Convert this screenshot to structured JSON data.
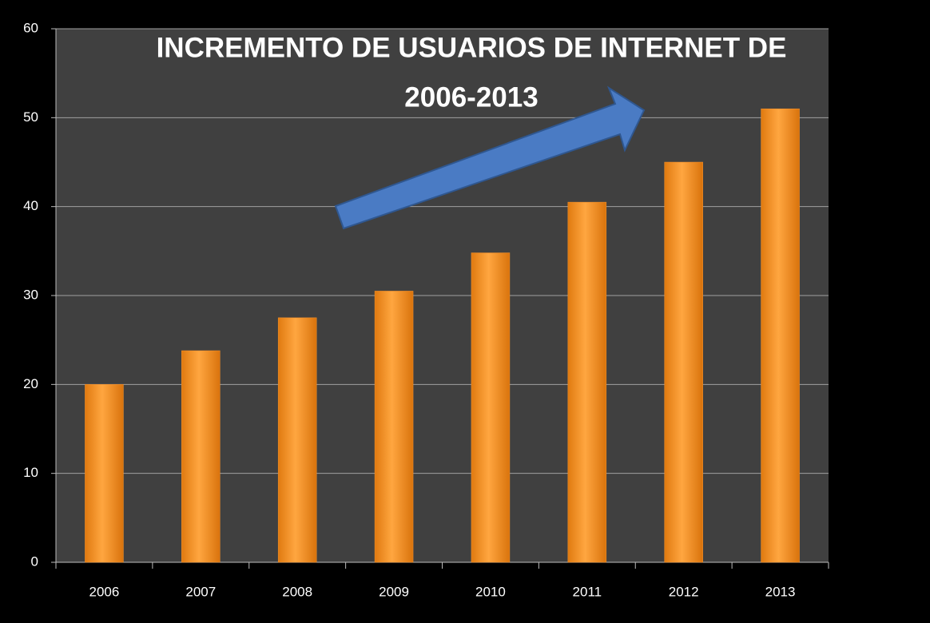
{
  "chart_data": {
    "type": "bar",
    "title": [
      "INCREMENTO DE USUARIOS DE INTERNET DE",
      "2006-2013"
    ],
    "categories": [
      "2006",
      "2007",
      "2008",
      "2009",
      "2010",
      "2011",
      "2012",
      "2013"
    ],
    "values": [
      20,
      23.8,
      27.5,
      30.5,
      34.8,
      40.5,
      45,
      51
    ],
    "color": "#f7922a",
    "ylim": [
      0,
      60
    ],
    "yticks": [
      0,
      10,
      20,
      30,
      40,
      50,
      60
    ],
    "grid": true
  }
}
